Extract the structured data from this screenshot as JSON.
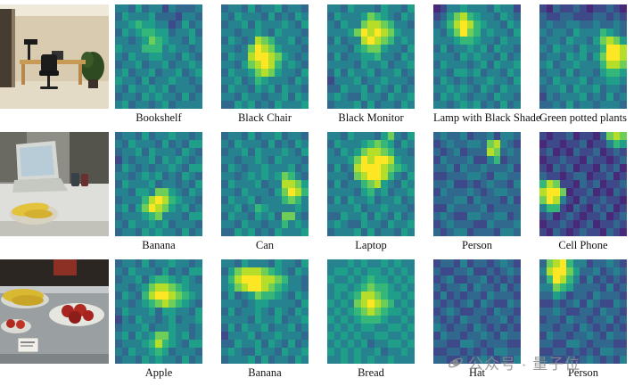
{
  "watermark": {
    "text": "公众号 · 量子位"
  },
  "chart_data": {
    "type": "heatmap",
    "colormap": "viridis",
    "grid_size": [
      13,
      13
    ],
    "value_scale": [
      0,
      9
    ],
    "palette": [
      "#440154",
      "#482878",
      "#3e4989",
      "#31688e",
      "#26828e",
      "#1f9e89",
      "#35b779",
      "#6ece58",
      "#b5de2b",
      "#fde725"
    ],
    "legend_position": "none",
    "rows": [
      {
        "photo": {
          "id": "office-room-scene",
          "description": "Office room with wooden desk, black lamp, black chair and green potted plant"
        },
        "heatmaps": [
          {
            "label": "Bookshelf",
            "values": [
              "4435344243334",
              "3544453332443",
              "4456554423534",
              "3545665534453",
              "4434576544354",
              "5444666454434",
              "4354455443543",
              "3445344534454",
              "4534453445345",
              "5443534454434",
              "4354454534443",
              "3443545443534",
              "4534434534444"
            ]
          },
          {
            "label": "Black Chair",
            "values": [
              "3443534453443",
              "4354443534354",
              "3445354445435",
              "4434454354443",
              "3543487644534",
              "4434798754443",
              "3544899875434",
              "4435789864543",
              "3544578754435",
              "4453465444354",
              "3544354535443",
              "4435443445354",
              "3354534354445"
            ]
          },
          {
            "label": "Black Monitor",
            "values": [
              "4435444354435",
              "3544457654354",
              "4354478876443",
              "4445798987544",
              "3534489876454",
              "4443567754435",
              "3534455644354",
              "4444354453445",
              "3535445344534",
              "2444534454443",
              "3354453543534",
              "4543354435445",
              "3444535344354"
            ]
          },
          {
            "label": "Lamp with Black Shade",
            "values": [
              "1244544435442",
              "2357865443543",
              "3468986544354",
              "4357976454435",
              "4445665443544",
              "3534454535443",
              "4443545443534",
              "3544434535445",
              "4435545344354",
              "3543434454435",
              "4454543543544",
              "3545434435443",
              "4434545343534"
            ]
          },
          {
            "label": "Green potted plants",
            "values": [
              "2132232122321",
              "3223322233232",
              "3433443343343",
              "4344354446543",
              "3443544357875",
              "4354435446998",
              "3443545357998",
              "4534454446887",
              "3443534435665",
              "4354445344554",
              "3445354453443",
              "2434445343534",
              "3343534434443"
            ]
          }
        ]
      },
      {
        "photo": {
          "id": "office-desk-laptop-scene",
          "description": "White desk with open laptop, cans and a bowl of bananas"
        },
        "heatmaps": [
          {
            "label": "Banana",
            "values": [
              "3443534454434",
              "4354443534355",
              "3445354443543",
              "2434453545434",
              "3543434454355",
              "4434545343543",
              "3544453443435",
              "4435547754354",
              "3444689865443",
              "4535798754534",
              "3444567444355",
              "4354454534443",
              "3443545443534"
            ]
          },
          {
            "label": "Can",
            "values": [
              "3443534453443",
              "4354443534354",
              "3445354445435",
              "4434454354443",
              "3543445444534",
              "4434545457643",
              "3544453448875",
              "4435444357986",
              "3544534446764",
              "4453465444454",
              "3544354537743",
              "4435443446454",
              "3354534354445"
            ]
          },
          {
            "label": "Laptop",
            "values": [
              "4435444357435",
              "3544456765354",
              "4354578876443",
              "4445798998544",
              "3534899987654",
              "4443789986435",
              "3534467854354",
              "4444356453445",
              "3535445344534",
              "4444534454443",
              "3354453543534",
              "4543354435445",
              "3444535344354"
            ]
          },
          {
            "label": "Person",
            "values": [
              "3433423342443",
              "2343344378432",
              "3234233387343",
              "2433342246233",
              "3342433433342",
              "2233344324433",
              "3342232343324",
              "2433343234433",
              "3334424333242",
              "2243333423333",
              "3432244334423",
              "2343332243334",
              "3234423332443"
            ]
          },
          {
            "label": "Cell Phone",
            "values": [
              "2122312213787",
              "1221223122465",
              "2312132231232",
              "1223221322123",
              "2132312213231",
              "3221233122312",
              "6872213231223",
              "8997122312132",
              "7984213223221",
              "4662132132312",
              "2312321223123",
              "1223212312232",
              "2132123221321"
            ]
          }
        ]
      },
      {
        "photo": {
          "id": "kitchen-counter-scene",
          "description": "Steel kitchen counter with bananas, plates of red fruit and a label card"
        },
        "heatmaps": [
          {
            "label": "Apple",
            "values": [
              "3443534454434",
              "4354443534355",
              "3445356654543",
              "4434578876544",
              "3543689987654",
              "4434567876543",
              "3544453554435",
              "2435443453445",
              "3444534454434",
              "4535457754534",
              "3444568654355",
              "4354456534443",
              "3443545443534"
            ]
          },
          {
            "label": "Banana",
            "values": [
              "4435444354435",
              "3578887654354",
              "4689998876443",
              "4578998765443",
              "3534576654354",
              "4443455444435",
              "3534454354354",
              "4444354453445",
              "3535445344534",
              "2444534454443",
              "3354453543534",
              "4543354435445",
              "3444535344354"
            ]
          },
          {
            "label": "Bread",
            "values": [
              "4445454454544",
              "4554545545454",
              "5445456554545",
              "4554567665454",
              "4545688765545",
              "5454789876454",
              "4545678765545",
              "5454566654454",
              "4545455445545",
              "5454544554454",
              "4545453445545",
              "5454544534454",
              "4454545445444"
            ]
          },
          {
            "label": "Hat",
            "values": [
              "2332423323432",
              "3223342232343",
              "2342233423232",
              "3233424332423",
              "2423233243332",
              "3232342432243",
              "2343223324332",
              "3232433233423",
              "4323324323232",
              "2433233432433",
              "3322443233322",
              "2233232324433",
              "3322323432324"
            ]
          },
          {
            "label": "Person",
            "values": [
              "3789644233432",
              "4899753342343",
              "3698642423232",
              "4476533332423",
              "3354233243332",
              "2232342432243",
              "3343223324332",
              "2332433233423",
              "3323324323232",
              "2433233432433",
              "3322443233322",
              "2233232324433",
              "3322323432324"
            ]
          }
        ]
      }
    ]
  }
}
